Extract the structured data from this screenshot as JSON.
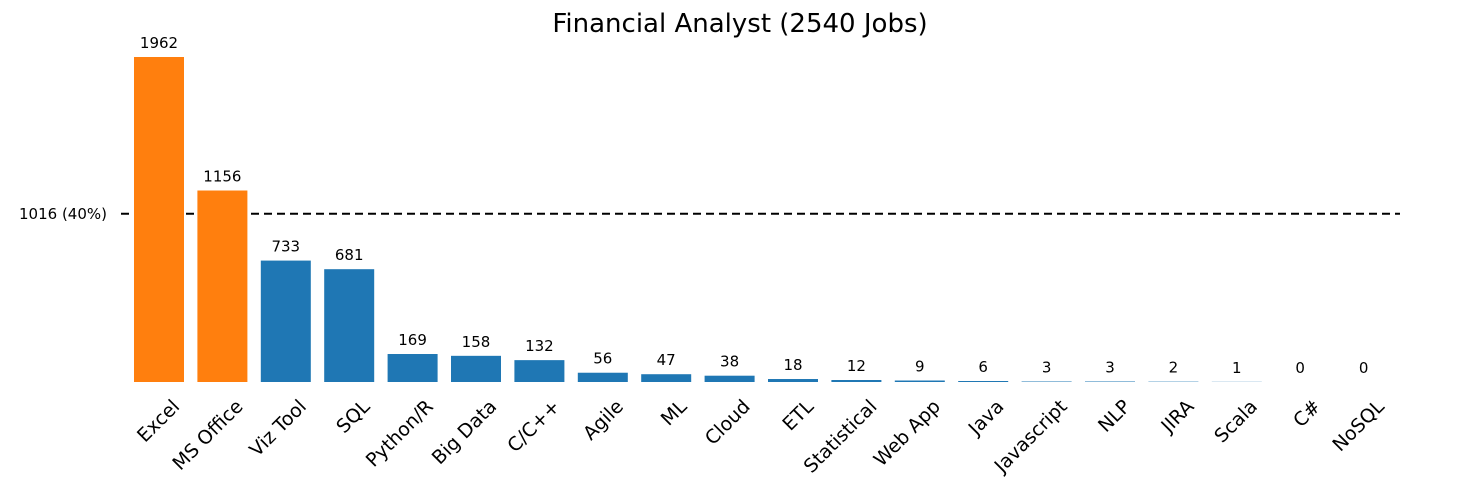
{
  "chart_data": {
    "type": "bar",
    "title": "Financial Analyst (2540 Jobs)",
    "xlabel": "",
    "ylabel": "",
    "ylim": [
      0,
      2000
    ],
    "grid": false,
    "categories": [
      "Excel",
      "MS Office",
      "Viz Tool",
      "SQL",
      "Python/R",
      "Big Data",
      "C/C++",
      "Agile",
      "ML",
      "Cloud",
      "ETL",
      "Statistical",
      "Web App",
      "Java",
      "Javascript",
      "NLP",
      "JIRA",
      "Scala",
      "C#",
      "NoSQL"
    ],
    "values": [
      1962,
      1156,
      733,
      681,
      169,
      158,
      132,
      56,
      47,
      38,
      18,
      12,
      9,
      6,
      3,
      3,
      2,
      1,
      0,
      0
    ],
    "highlighted": [
      true,
      true,
      false,
      false,
      false,
      false,
      false,
      false,
      false,
      false,
      false,
      false,
      false,
      false,
      false,
      false,
      false,
      false,
      false,
      false
    ],
    "threshold": {
      "value": 1016,
      "label": "1016 (40%)"
    },
    "colors": {
      "highlight": "#ff7f0e",
      "base": "#1f77b4",
      "threshold_line": "#000000"
    }
  }
}
